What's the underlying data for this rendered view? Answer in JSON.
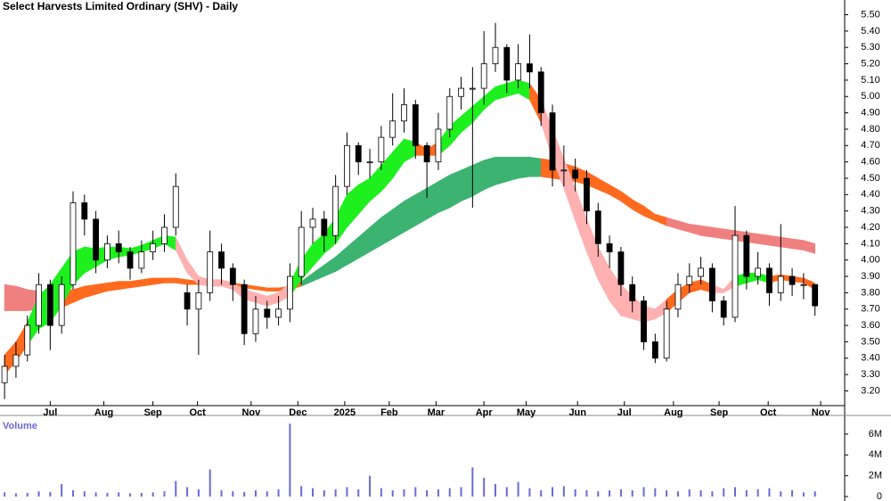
{
  "chart_data": [
    {
      "type": "candlestick",
      "title": "Select Harvests Limited Ordinary (SHV) - Daily",
      "xlim": [
        -0.4,
        73.6
      ],
      "xticks": [
        {
          "value": 4,
          "label": "Jul"
        },
        {
          "value": 8.7,
          "label": "Aug"
        },
        {
          "value": 13,
          "label": "Sep"
        },
        {
          "value": 16.9,
          "label": "Oct"
        },
        {
          "value": 21.6,
          "label": "Nov"
        },
        {
          "value": 25.7,
          "label": "Dec"
        },
        {
          "value": 29.8,
          "label": "2025"
        },
        {
          "value": 33.7,
          "label": "Feb"
        },
        {
          "value": 37.8,
          "label": "Mar"
        },
        {
          "value": 42,
          "label": "Apr"
        },
        {
          "value": 45.7,
          "label": "May"
        },
        {
          "value": 50.2,
          "label": "Jun"
        },
        {
          "value": 54.3,
          "label": "Jul"
        },
        {
          "value": 58.6,
          "label": "Aug"
        },
        {
          "value": 62.6,
          "label": "Sep"
        },
        {
          "value": 66.9,
          "label": "Oct"
        },
        {
          "value": 71.5,
          "label": "Nov"
        }
      ],
      "ylim": [
        3.11,
        5.59
      ],
      "yticks": [
        {
          "value": 3.2,
          "label": "3.20"
        },
        {
          "value": 3.3,
          "label": "3.30"
        },
        {
          "value": 3.4,
          "label": "3.40"
        },
        {
          "value": 3.5,
          "label": "3.50"
        },
        {
          "value": 3.6,
          "label": "3.60"
        },
        {
          "value": 3.7,
          "label": "3.70"
        },
        {
          "value": 3.8,
          "label": "3.80"
        },
        {
          "value": 3.9,
          "label": "3.90"
        },
        {
          "value": 4.0,
          "label": "4.00"
        },
        {
          "value": 4.1,
          "label": "4.10"
        },
        {
          "value": 4.2,
          "label": "4.20"
        },
        {
          "value": 4.3,
          "label": "4.30"
        },
        {
          "value": 4.4,
          "label": "4.40"
        },
        {
          "value": 4.5,
          "label": "4.50"
        },
        {
          "value": 4.6,
          "label": "4.60"
        },
        {
          "value": 4.7,
          "label": "4.70"
        },
        {
          "value": 4.8,
          "label": "4.80"
        },
        {
          "value": 4.9,
          "label": "4.90"
        },
        {
          "value": 5.0,
          "label": "5.00"
        },
        {
          "value": 5.1,
          "label": "5.10"
        },
        {
          "value": 5.2,
          "label": "5.20"
        },
        {
          "value": 5.3,
          "label": "5.30"
        },
        {
          "value": 5.4,
          "label": "5.40"
        },
        {
          "value": 5.5,
          "label": "5.50"
        }
      ],
      "open": [
        3.25,
        3.35,
        3.42,
        3.6,
        3.85,
        3.6,
        3.85,
        4.35,
        4.25,
        4.0,
        4.1,
        4.05,
        3.95,
        4.05,
        4.1,
        4.2,
        3.8,
        3.7,
        3.8,
        4.05,
        3.95,
        3.85,
        3.55,
        3.7,
        3.65,
        3.7,
        3.9,
        4.2,
        4.25,
        4.15,
        4.45,
        4.7,
        4.6,
        4.6,
        4.75,
        4.85,
        4.95,
        4.7,
        4.6,
        4.8,
        5.0,
        5.05,
        5.05,
        5.2,
        5.3,
        5.1,
        5.2,
        5.15,
        4.9,
        4.55,
        4.55,
        4.5,
        4.3,
        4.1,
        4.05,
        3.85,
        3.75,
        3.5,
        3.4,
        3.7,
        3.85,
        3.9,
        3.95,
        3.75,
        3.65,
        4.15,
        3.9,
        3.95,
        3.8,
        3.9,
        3.85,
        3.85
      ],
      "high": [
        3.42,
        3.5,
        3.66,
        3.92,
        3.88,
        3.9,
        4.42,
        4.4,
        4.3,
        4.15,
        4.18,
        4.08,
        4.12,
        4.18,
        4.28,
        4.53,
        3.85,
        3.88,
        4.18,
        4.1,
        3.98,
        3.88,
        3.78,
        3.75,
        3.78,
        3.98,
        4.3,
        4.32,
        4.3,
        4.52,
        4.78,
        4.72,
        4.68,
        4.82,
        5.02,
        5.05,
        4.98,
        4.72,
        4.9,
        5.05,
        5.12,
        5.18,
        5.4,
        5.45,
        5.32,
        5.32,
        5.38,
        5.18,
        4.95,
        4.7,
        4.62,
        4.55,
        4.35,
        4.15,
        4.08,
        3.9,
        3.78,
        3.55,
        3.75,
        3.92,
        3.98,
        4.02,
        3.98,
        3.78,
        4.33,
        4.18,
        4.05,
        3.98,
        4.22,
        3.95,
        3.92,
        3.85
      ],
      "low": [
        3.15,
        3.28,
        3.38,
        3.55,
        3.45,
        3.55,
        3.82,
        4.15,
        3.92,
        3.95,
        3.98,
        3.88,
        3.92,
        4.0,
        4.05,
        4.15,
        3.6,
        3.42,
        3.75,
        3.85,
        3.75,
        3.48,
        3.5,
        3.58,
        3.6,
        3.62,
        3.85,
        4.1,
        4.05,
        4.1,
        4.4,
        4.52,
        4.5,
        4.55,
        4.7,
        4.78,
        4.62,
        4.38,
        4.55,
        4.75,
        4.92,
        4.32,
        4.95,
        5.15,
        5.02,
        5.05,
        5.05,
        4.82,
        4.45,
        4.45,
        4.42,
        4.22,
        4.02,
        3.95,
        3.78,
        3.68,
        3.45,
        3.37,
        3.38,
        3.65,
        3.8,
        3.85,
        3.68,
        3.6,
        3.62,
        3.82,
        3.85,
        3.72,
        3.75,
        3.78,
        3.76,
        3.66
      ],
      "close": [
        3.35,
        3.42,
        3.6,
        3.85,
        3.6,
        3.85,
        4.35,
        4.25,
        4.0,
        4.1,
        4.05,
        3.95,
        4.05,
        4.1,
        4.2,
        4.45,
        3.7,
        3.8,
        4.05,
        3.95,
        3.85,
        3.55,
        3.7,
        3.65,
        3.7,
        3.9,
        4.2,
        4.25,
        4.15,
        4.45,
        4.7,
        4.6,
        4.6,
        4.75,
        4.85,
        4.95,
        4.7,
        4.6,
        4.8,
        5.0,
        5.05,
        5.05,
        5.2,
        5.3,
        5.1,
        5.2,
        5.15,
        4.9,
        4.55,
        4.55,
        4.5,
        4.3,
        4.1,
        4.05,
        3.85,
        3.75,
        3.5,
        3.4,
        3.7,
        3.85,
        3.9,
        3.95,
        3.75,
        3.65,
        4.15,
        3.9,
        3.95,
        3.8,
        3.9,
        3.85,
        3.85,
        3.72
      ],
      "ribbons": [
        {
          "upper": [
            3.85,
            3.84,
            3.82,
            3.81,
            3.8,
            3.8,
            3.82,
            3.84,
            3.85,
            3.86,
            3.87,
            3.87,
            3.88,
            3.89,
            3.89,
            3.89,
            3.88,
            3.87,
            3.87,
            3.87,
            3.86,
            3.85,
            3.84,
            3.83,
            3.83,
            3.84,
            3.87,
            3.92,
            3.97,
            4.02,
            4.08,
            4.14,
            4.2,
            4.26,
            4.31,
            4.36,
            4.4,
            4.44,
            4.48,
            4.52,
            4.55,
            4.58,
            4.61,
            4.63,
            4.63,
            4.63,
            4.63,
            4.62,
            4.61,
            4.59,
            4.57,
            4.54,
            4.5,
            4.46,
            4.42,
            4.37,
            4.33,
            4.28,
            4.26,
            4.24,
            4.22,
            4.21,
            4.2,
            4.19,
            4.18,
            4.17,
            4.16,
            4.15,
            4.14,
            4.13,
            4.12,
            4.1
          ],
          "lower": [
            3.69,
            3.69,
            3.69,
            3.7,
            3.7,
            3.71,
            3.74,
            3.77,
            3.79,
            3.81,
            3.82,
            3.83,
            3.84,
            3.85,
            3.86,
            3.86,
            3.85,
            3.85,
            3.85,
            3.85,
            3.84,
            3.83,
            3.82,
            3.81,
            3.81,
            3.82,
            3.84,
            3.87,
            3.9,
            3.93,
            3.97,
            4.01,
            4.05,
            4.09,
            4.13,
            4.17,
            4.21,
            4.25,
            4.29,
            4.32,
            4.36,
            4.39,
            4.43,
            4.46,
            4.48,
            4.5,
            4.51,
            4.51,
            4.5,
            4.49,
            4.48,
            4.46,
            4.43,
            4.4,
            4.36,
            4.31,
            4.27,
            4.24,
            4.21,
            4.19,
            4.17,
            4.15,
            4.14,
            4.13,
            4.12,
            4.11,
            4.1,
            4.09,
            4.08,
            4.07,
            4.06,
            4.04
          ],
          "segment_colors": [
            "#f08080",
            "#f08080",
            "#f08080",
            "#f08080",
            "#f08080",
            "#ff6a1f",
            "#ff6a1f",
            "#ff6a1f",
            "#ff6a1f",
            "#ff6a1f",
            "#ff6a1f",
            "#ff6a1f",
            "#ff6a1f",
            "#ff6a1f",
            "#ff6a1f",
            "#ff6a1f",
            "#ff6a1f",
            "#ff6a1f",
            "#ff6a1f",
            "#ff6a1f",
            "#ff6a1f",
            "#ff6a1f",
            "#ff6a1f",
            "#ff6a1f",
            "#ff6a1f",
            "#ff6a1f",
            "#3cb371",
            "#3cb371",
            "#3cb371",
            "#3cb371",
            "#3cb371",
            "#3cb371",
            "#3cb371",
            "#3cb371",
            "#3cb371",
            "#3cb371",
            "#3cb371",
            "#3cb371",
            "#3cb371",
            "#3cb371",
            "#3cb371",
            "#3cb371",
            "#3cb371",
            "#3cb371",
            "#3cb371",
            "#3cb371",
            "#3cb371",
            "#ff6a1f",
            "#ff6a1f",
            "#ff6a1f",
            "#ff6a1f",
            "#ff6a1f",
            "#ff6a1f",
            "#ff6a1f",
            "#ff6a1f",
            "#ff6a1f",
            "#ff6a1f",
            "#ff6a1f",
            "#f08080",
            "#f08080",
            "#f08080",
            "#f08080",
            "#f08080",
            "#f08080",
            "#f08080",
            "#f08080",
            "#f08080",
            "#f08080",
            "#f08080",
            "#f08080",
            "#f08080"
          ]
        },
        {
          "upper": [
            3.42,
            3.5,
            3.62,
            3.78,
            3.85,
            3.95,
            4.05,
            4.08,
            4.07,
            4.08,
            4.08,
            4.07,
            4.09,
            4.12,
            4.15,
            4.14,
            4.0,
            3.9,
            3.88,
            3.88,
            3.86,
            3.82,
            3.8,
            3.78,
            3.8,
            3.86,
            4.0,
            4.1,
            4.16,
            4.26,
            4.4,
            4.46,
            4.5,
            4.58,
            4.66,
            4.74,
            4.72,
            4.68,
            4.72,
            4.82,
            4.88,
            4.94,
            5.0,
            5.06,
            5.08,
            5.1,
            5.08,
            4.98,
            4.8,
            4.62,
            4.44,
            4.25,
            4.08,
            3.95,
            3.85,
            3.78,
            3.72,
            3.7,
            3.76,
            3.82,
            3.86,
            3.88,
            3.85,
            3.82,
            3.9,
            3.92,
            3.92,
            3.9,
            3.91,
            3.9,
            3.89,
            3.86
          ],
          "lower": [
            3.3,
            3.38,
            3.48,
            3.58,
            3.62,
            3.72,
            3.85,
            3.92,
            3.96,
            4.0,
            4.02,
            4.03,
            4.05,
            4.07,
            4.1,
            4.06,
            3.92,
            3.85,
            3.84,
            3.84,
            3.82,
            3.76,
            3.74,
            3.72,
            3.74,
            3.78,
            3.88,
            3.96,
            4.04,
            4.1,
            4.2,
            4.28,
            4.36,
            4.42,
            4.5,
            4.6,
            4.64,
            4.64,
            4.64,
            4.7,
            4.78,
            4.84,
            4.92,
            4.98,
            5.0,
            5.02,
            4.98,
            4.84,
            4.62,
            4.44,
            4.24,
            4.05,
            3.88,
            3.75,
            3.66,
            3.64,
            3.62,
            3.64,
            3.68,
            3.74,
            3.8,
            3.82,
            3.8,
            3.8,
            3.84,
            3.86,
            3.88,
            3.86,
            3.88,
            3.87,
            3.86,
            3.82
          ],
          "segment_colors": [
            "#ff6a1f",
            "#ff6a1f",
            "#1ef01e",
            "#1ef01e",
            "#1ef01e",
            "#1ef01e",
            "#1ef01e",
            "#1ef01e",
            "#1ef01e",
            "#1ef01e",
            "#1ef01e",
            "#1ef01e",
            "#1ef01e",
            "#1ef01e",
            "#1ef01e",
            "#ffb0b0",
            "#ffb0b0",
            "#ffb0b0",
            "#ffb0b0",
            "#ffb0b0",
            "#ffb0b0",
            "#ffb0b0",
            "#ffb0b0",
            "#ffb0b0",
            "#ffb0b0",
            "#1ef01e",
            "#1ef01e",
            "#1ef01e",
            "#1ef01e",
            "#1ef01e",
            "#1ef01e",
            "#1ef01e",
            "#1ef01e",
            "#1ef01e",
            "#1ef01e",
            "#1ef01e",
            "#ff6a1f",
            "#ff6a1f",
            "#1ef01e",
            "#1ef01e",
            "#1ef01e",
            "#1ef01e",
            "#1ef01e",
            "#1ef01e",
            "#1ef01e",
            "#1ef01e",
            "#ff6a1f",
            "#ffb0b0",
            "#ffb0b0",
            "#ffb0b0",
            "#ffb0b0",
            "#ffb0b0",
            "#ffb0b0",
            "#ffb0b0",
            "#ffb0b0",
            "#ffb0b0",
            "#ffb0b0",
            "#ffb0b0",
            "#ff6a1f",
            "#ff6a1f",
            "#ff6a1f",
            "#ff6a1f",
            "#ffb0b0",
            "#ffb0b0",
            "#1ef01e",
            "#1ef01e",
            "#1ef01e",
            "#ff6a1f",
            "#ff6a1f",
            "#ff6a1f",
            "#ff6a1f"
          ]
        }
      ],
      "up_color": "#ffffff",
      "down_color": "#000000"
    },
    {
      "type": "bar",
      "title": "Volume",
      "color": "#6a6ad8",
      "ylim": [
        0,
        7450000
      ],
      "yticks": [
        0,
        {
          "value": 2000000,
          "label": "2M"
        },
        {
          "value": 4000000,
          "label": "4M"
        },
        {
          "value": 6000000,
          "label": "6M"
        }
      ],
      "values": [
        400000,
        300000,
        350000,
        500000,
        450000,
        1200000,
        600000,
        500000,
        400000,
        350000,
        400000,
        300000,
        350000,
        400000,
        500000,
        1500000,
        900000,
        700000,
        2600000,
        600000,
        500000,
        450000,
        600000,
        500000,
        700000,
        7000000,
        1000000,
        800000,
        600000,
        700000,
        900000,
        700000,
        2000000,
        800000,
        600000,
        700000,
        900000,
        600000,
        700000,
        800000,
        900000,
        2800000,
        1800000,
        1200000,
        900000,
        1400000,
        800000,
        600000,
        900000,
        1000000,
        700000,
        600000,
        500000,
        600000,
        700000,
        600000,
        900000,
        800000,
        600000,
        500000,
        700000,
        600000,
        500000,
        800000,
        900000,
        600000,
        700000,
        800000,
        500000,
        600000,
        400000,
        500000
      ]
    }
  ]
}
